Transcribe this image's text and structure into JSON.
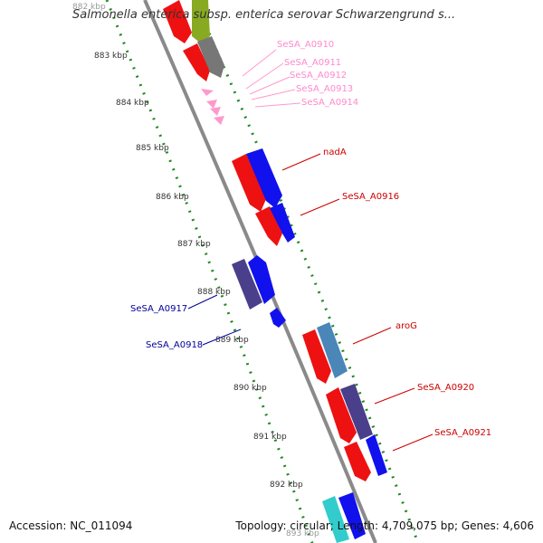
{
  "title": "Salmonella enterica subsp. enterica serovar Schwarzengrund s...",
  "footer": {
    "accession": "Accession: NC_011094",
    "summary": "Topology: circular; Length: 4,709,075 bp; Genes: 4,606"
  },
  "ticks": [
    {
      "label": "882 kbp"
    },
    {
      "label": "883 kbp"
    },
    {
      "label": "884 kbp"
    },
    {
      "label": "885 kbp"
    },
    {
      "label": "886 kbp"
    },
    {
      "label": "887 kbp"
    },
    {
      "label": "888 kbp"
    },
    {
      "label": "889 kbp"
    },
    {
      "label": "890 kbp"
    },
    {
      "label": "891 kbp"
    },
    {
      "label": "892 kbp"
    },
    {
      "label": "893 kbp"
    }
  ],
  "gene_labels": [
    {
      "text": "SeSA_A0910",
      "color": "#ff88cc"
    },
    {
      "text": "SeSA_A0911",
      "color": "#ff88cc"
    },
    {
      "text": "SeSA_A0912",
      "color": "#ff88cc"
    },
    {
      "text": "SeSA_A0913",
      "color": "#ff88cc"
    },
    {
      "text": "SeSA_A0914",
      "color": "#ff88cc"
    },
    {
      "text": "nadA",
      "color": "#cc0000"
    },
    {
      "text": "SeSA_A0916",
      "color": "#cc0000"
    },
    {
      "text": "SeSA_A0917",
      "color": "#000099"
    },
    {
      "text": "SeSA_A0918",
      "color": "#000099"
    },
    {
      "text": "aroG",
      "color": "#cc0000"
    },
    {
      "text": "SeSA_A0920",
      "color": "#cc0000"
    },
    {
      "text": "SeSA_A0921",
      "color": "#cc0000"
    }
  ],
  "colors": {
    "backbone": "#888888",
    "tick": "#228822",
    "red_gene": "#ee1111",
    "blue_gene": "#1111ee",
    "purple_gene": "#4a3f8a",
    "steel_gene": "#4a86b8",
    "cyan_gene": "#33cccc",
    "gray_gene": "#777777",
    "olive_gene": "#88aa22",
    "pink_gene": "#ff99cc"
  }
}
